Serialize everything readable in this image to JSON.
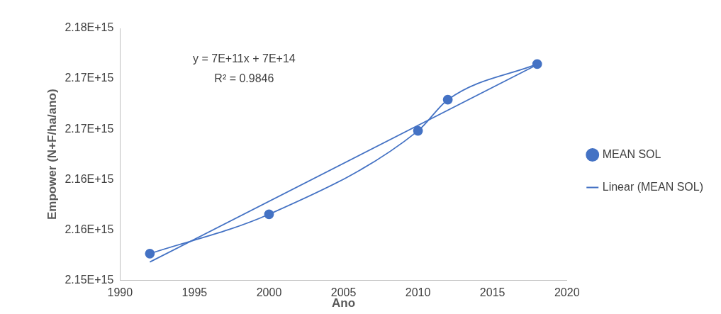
{
  "chart_data": {
    "type": "line",
    "xlabel": "Ano",
    "ylabel": "Empower (N+F/ha/ano)",
    "x": [
      1992,
      2000,
      2010,
      2012,
      2018
    ],
    "series": [
      {
        "name": "MEAN SOL",
        "color": "#4472c4",
        "marker": "circle",
        "values": [
          2152640000000000.0,
          2156550000000000.0,
          2164830000000000.0,
          2167920000000000.0,
          2171460000000000.0
        ]
      },
      {
        "name": "Linear (MEAN SOL)",
        "color": "#4472c4",
        "marker": "none",
        "x": [
          1992,
          2018
        ],
        "values": [
          2151810000000000.0,
          2171390000000000.0
        ]
      }
    ],
    "xlim": [
      1990,
      2020
    ],
    "xticks": [
      1990,
      1995,
      2000,
      2005,
      2010,
      2015,
      2020
    ],
    "ylim": [
      2150000000000000.0,
      2175000000000000.0
    ],
    "yticks": [
      {
        "value": 2150000000000000.0,
        "label": "2.15E+15"
      },
      {
        "value": 2155000000000000.0,
        "label": "2.16E+15"
      },
      {
        "value": 2160000000000000.0,
        "label": "2.16E+15"
      },
      {
        "value": 2165000000000000.0,
        "label": "2.17E+15"
      },
      {
        "value": 2170000000000000.0,
        "label": "2.17E+15"
      },
      {
        "value": 2175000000000000.0,
        "label": "2.18E+15"
      }
    ],
    "grid": false,
    "legend": "right",
    "annotations": [
      "y = 7E+11x + 7E+14",
      "R² = 0.9846"
    ]
  }
}
